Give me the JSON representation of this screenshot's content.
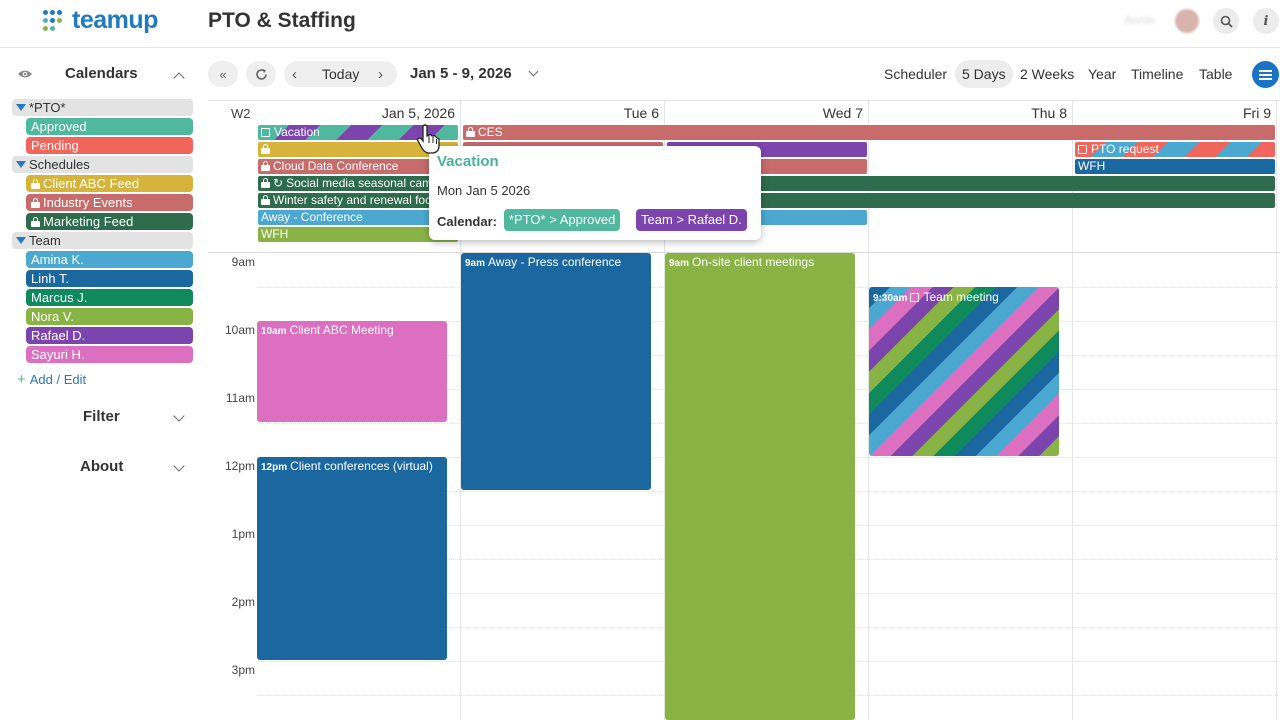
{
  "header": {
    "logo_text": "teamup",
    "title": "PTO & Staffing",
    "user_name": "Annie",
    "search_icon": "search-icon",
    "info_icon": "info-icon"
  },
  "sidebar": {
    "title": "Calendars",
    "groups": [
      {
        "label": "*PTO*",
        "items": [
          {
            "label": "Approved",
            "color": "#4fb89e",
            "locked": false
          },
          {
            "label": "Pending",
            "color": "#f0665c",
            "locked": false
          }
        ]
      },
      {
        "label": "Schedules",
        "items": [
          {
            "label": "Client ABC Feed",
            "color": "#d6b43c",
            "locked": true
          },
          {
            "label": "Industry Events",
            "color": "#c76b6b",
            "locked": true
          },
          {
            "label": "Marketing Feed",
            "color": "#2f6b4d",
            "locked": true
          }
        ]
      },
      {
        "label": "Team",
        "items": [
          {
            "label": "Amina K.",
            "color": "#4ba9d1",
            "locked": false
          },
          {
            "label": "Linh T.",
            "color": "#1b68a0",
            "locked": false
          },
          {
            "label": "Marcus J.",
            "color": "#0f8a5c",
            "locked": false
          },
          {
            "label": "Nora V.",
            "color": "#8ab346",
            "locked": false
          },
          {
            "label": "Rafael D.",
            "color": "#7b45ad",
            "locked": false
          },
          {
            "label": "Sayuri H.",
            "color": "#dc6fc0",
            "locked": false
          }
        ]
      }
    ],
    "add_edit_label": "Add / Edit",
    "filter_label": "Filter",
    "about_label": "About"
  },
  "toolbar": {
    "today_label": "Today",
    "date_range": "Jan 5 - 9, 2026",
    "views": [
      "Scheduler",
      "5 Days",
      "2 Weeks",
      "Year",
      "Timeline",
      "Table"
    ],
    "active_view": "5 Days"
  },
  "calendar": {
    "week_label": "W2",
    "days": [
      "Jan 5, 2026",
      "Tue 6",
      "Wed 7",
      "Thu 8",
      "Fri 9"
    ],
    "hours": [
      "9am",
      "10am",
      "11am",
      "12pm",
      "1pm",
      "2pm",
      "3pm"
    ],
    "allday": {
      "vacation": "Vacation",
      "ces": "CES",
      "cloud": "Cloud Data Conference",
      "social": "Social media seasonal campaign",
      "winter": "Winter safety and renewal focus",
      "away_conf": "Away - Conference",
      "wfh_mon": "WFH",
      "pto_request": "PTO request",
      "wfh_fri": "WFH"
    },
    "events": {
      "client_abc": {
        "time": "10am",
        "title": "Client ABC Meeting"
      },
      "client_conf": {
        "time": "12pm",
        "title": "Client conferences (virtual)"
      },
      "away_press": {
        "time": "9am",
        "title": "Away - Press conference"
      },
      "onsite": {
        "time": "9am",
        "title": "On-site client meetings"
      },
      "team_meeting": {
        "time": "9:30am",
        "title": "Team meeting"
      }
    }
  },
  "popup": {
    "title": "Vacation",
    "date": "Mon Jan 5 2026",
    "calendar_label": "Calendar:",
    "chips": [
      {
        "label": "*PTO* > Approved",
        "color": "#4fb89e"
      },
      {
        "label": "Team > Rafael D.",
        "color": "#7b45ad"
      }
    ]
  }
}
